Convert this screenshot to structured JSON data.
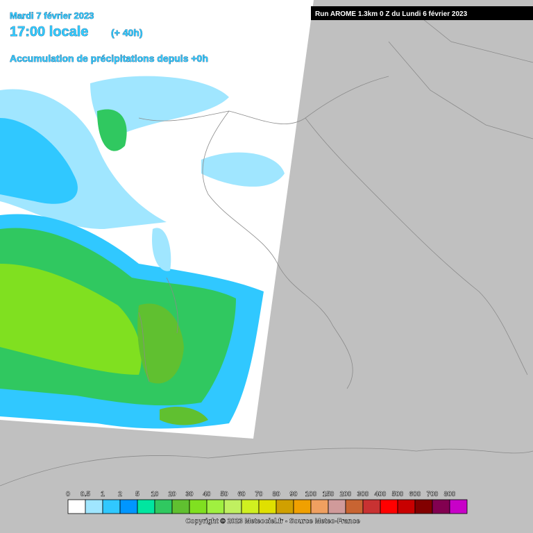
{
  "header": {
    "date": "Mardi 7 février 2023",
    "time": "17:00 locale",
    "offset": "(+ 40h)",
    "subtitle": "Accumulation de précipitations depuis +0h"
  },
  "run_info": "Run AROME 1.3km 0 Z du Lundi 6 février 2023",
  "legend": {
    "labels": [
      0,
      0.5,
      1,
      2,
      5,
      10,
      20,
      30,
      40,
      50,
      60,
      70,
      80,
      90,
      100,
      150,
      200,
      300,
      400,
      500,
      600,
      700,
      800
    ],
    "colors": [
      "#ffffff",
      "#a0e6ff",
      "#30c8ff",
      "#0096ff",
      "#00e6a0",
      "#30c860",
      "#60c030",
      "#80e020",
      "#a0f040",
      "#c0f060",
      "#d0f020",
      "#e0e000",
      "#d0a000",
      "#f0a000",
      "#f0a060",
      "#d09a9a",
      "#c86432",
      "#c83232",
      "#ff0000",
      "#c80000",
      "#820000",
      "#820050",
      "#c800c8"
    ]
  },
  "copyright": "Copyright © 2023 Meteociel.fr - Source Meteo-France"
}
